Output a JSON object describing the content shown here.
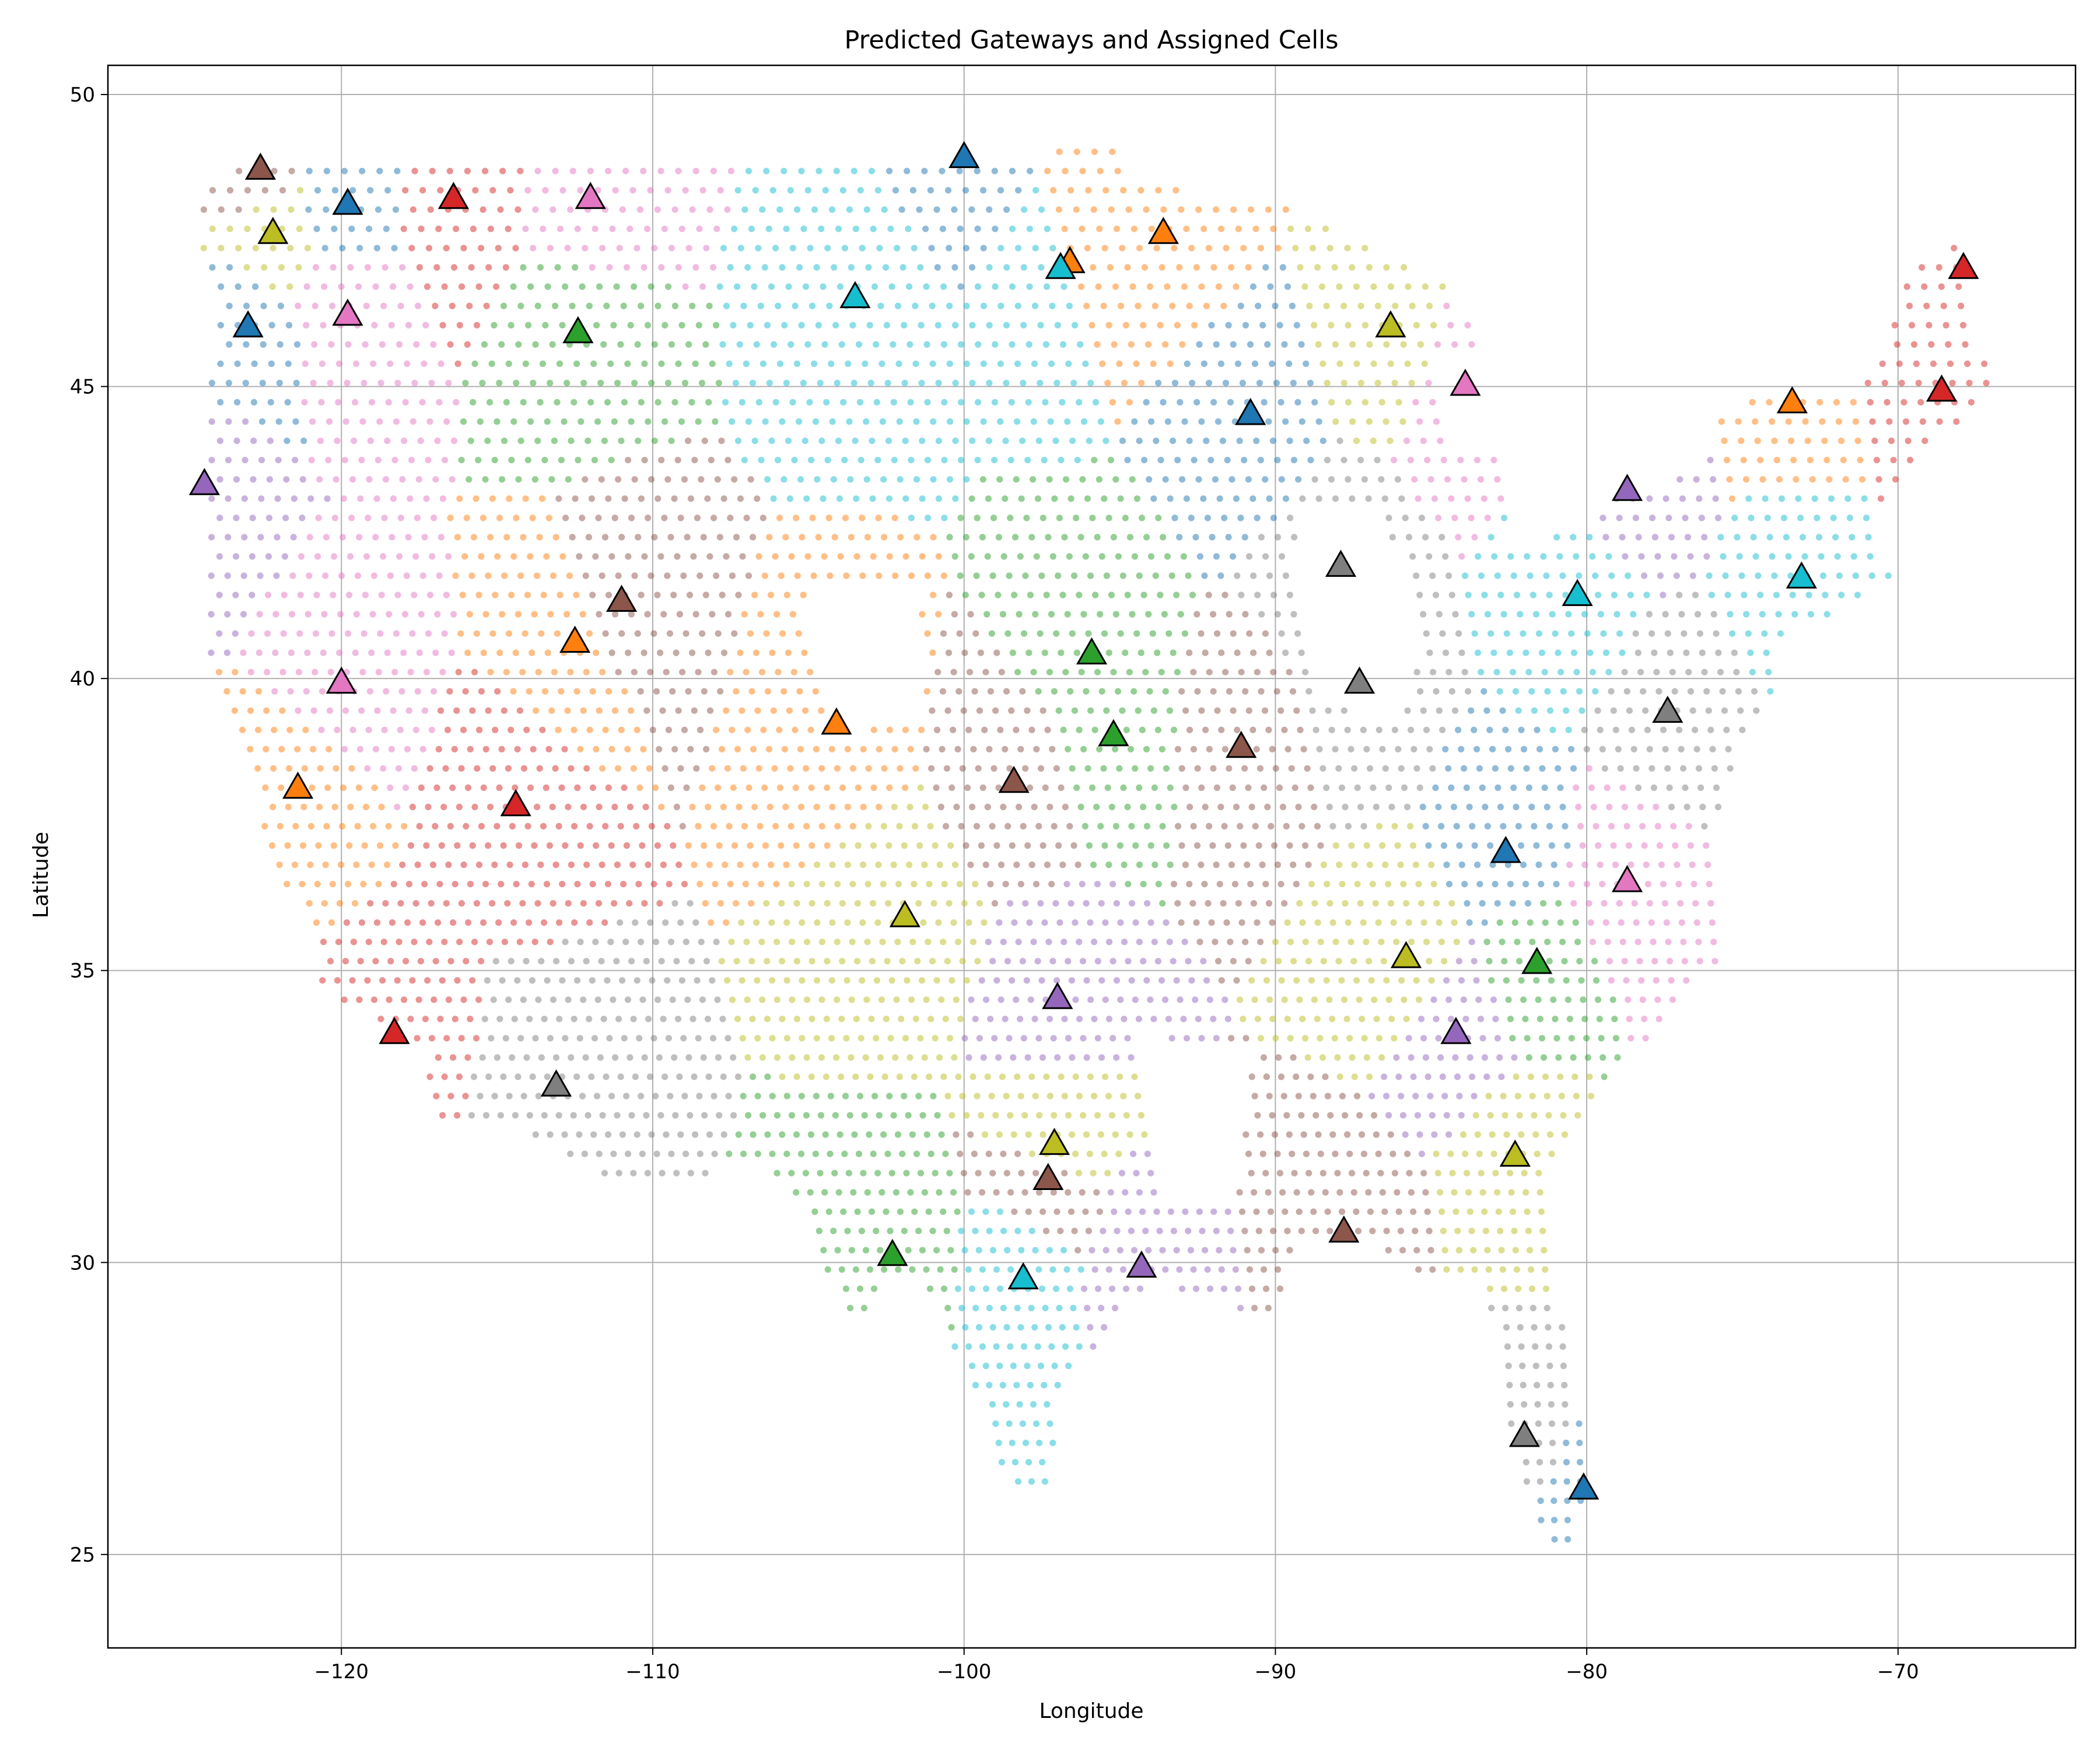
{
  "chart_data": {
    "type": "scatter",
    "title": "Predicted Gateways and Assigned Cells",
    "xlabel": "Longitude",
    "ylabel": "Latitude",
    "xlim": [
      -127.5,
      -64.3
    ],
    "ylim": [
      23.4,
      50.5
    ],
    "xticks": [
      -120,
      -110,
      -100,
      -90,
      -80,
      -70
    ],
    "yticks": [
      25,
      30,
      35,
      40,
      45,
      50
    ],
    "grid": true,
    "palette": {
      "blue": "#1f77b4",
      "orange": "#ff7f0e",
      "green": "#2ca02c",
      "red": "#d62728",
      "purple": "#9467bd",
      "brown": "#8c564b",
      "pink": "#e377c2",
      "gray": "#7f7f7f",
      "olive": "#bcbd22",
      "cyan": "#17becf"
    },
    "gateways": [
      {
        "lon": -122.6,
        "lat": 48.7,
        "color": "brown"
      },
      {
        "lon": -119.8,
        "lat": 48.1,
        "color": "blue"
      },
      {
        "lon": -116.4,
        "lat": 48.2,
        "color": "red"
      },
      {
        "lon": -112.0,
        "lat": 48.2,
        "color": "pink"
      },
      {
        "lon": -100.0,
        "lat": 48.9,
        "color": "blue"
      },
      {
        "lon": -122.2,
        "lat": 47.6,
        "color": "olive"
      },
      {
        "lon": -93.6,
        "lat": 47.6,
        "color": "orange"
      },
      {
        "lon": -96.6,
        "lat": 47.1,
        "color": "orange"
      },
      {
        "lon": -96.9,
        "lat": 47.0,
        "color": "cyan"
      },
      {
        "lon": -67.9,
        "lat": 47.0,
        "color": "red"
      },
      {
        "lon": -103.5,
        "lat": 46.5,
        "color": "cyan"
      },
      {
        "lon": -123.0,
        "lat": 46.0,
        "color": "blue"
      },
      {
        "lon": -119.8,
        "lat": 46.2,
        "color": "pink"
      },
      {
        "lon": -112.4,
        "lat": 45.9,
        "color": "green"
      },
      {
        "lon": -86.3,
        "lat": 46.0,
        "color": "olive"
      },
      {
        "lon": -83.9,
        "lat": 45.0,
        "color": "pink"
      },
      {
        "lon": -68.6,
        "lat": 44.9,
        "color": "red"
      },
      {
        "lon": -73.4,
        "lat": 44.7,
        "color": "orange"
      },
      {
        "lon": -90.8,
        "lat": 44.5,
        "color": "blue"
      },
      {
        "lon": -124.4,
        "lat": 43.3,
        "color": "purple"
      },
      {
        "lon": -78.7,
        "lat": 43.2,
        "color": "purple"
      },
      {
        "lon": -87.9,
        "lat": 41.9,
        "color": "gray"
      },
      {
        "lon": -73.1,
        "lat": 41.7,
        "color": "cyan"
      },
      {
        "lon": -80.3,
        "lat": 41.4,
        "color": "cyan"
      },
      {
        "lon": -111.0,
        "lat": 41.3,
        "color": "brown"
      },
      {
        "lon": -112.5,
        "lat": 40.6,
        "color": "orange"
      },
      {
        "lon": -95.9,
        "lat": 40.4,
        "color": "green"
      },
      {
        "lon": -120.0,
        "lat": 39.9,
        "color": "pink"
      },
      {
        "lon": -87.3,
        "lat": 39.9,
        "color": "gray"
      },
      {
        "lon": -77.4,
        "lat": 39.4,
        "color": "gray"
      },
      {
        "lon": -104.1,
        "lat": 39.2,
        "color": "orange"
      },
      {
        "lon": -95.2,
        "lat": 39.0,
        "color": "green"
      },
      {
        "lon": -91.1,
        "lat": 38.8,
        "color": "brown"
      },
      {
        "lon": -98.4,
        "lat": 38.2,
        "color": "brown"
      },
      {
        "lon": -121.4,
        "lat": 38.1,
        "color": "orange"
      },
      {
        "lon": -114.4,
        "lat": 37.8,
        "color": "red"
      },
      {
        "lon": -82.6,
        "lat": 37.0,
        "color": "blue"
      },
      {
        "lon": -78.7,
        "lat": 36.5,
        "color": "pink"
      },
      {
        "lon": -101.9,
        "lat": 35.9,
        "color": "olive"
      },
      {
        "lon": -85.8,
        "lat": 35.2,
        "color": "olive"
      },
      {
        "lon": -81.6,
        "lat": 35.1,
        "color": "green"
      },
      {
        "lon": -97.0,
        "lat": 34.5,
        "color": "purple"
      },
      {
        "lon": -84.2,
        "lat": 33.9,
        "color": "purple"
      },
      {
        "lon": -118.3,
        "lat": 33.9,
        "color": "red"
      },
      {
        "lon": -113.1,
        "lat": 33.0,
        "color": "gray"
      },
      {
        "lon": -97.1,
        "lat": 32.0,
        "color": "olive"
      },
      {
        "lon": -82.3,
        "lat": 31.8,
        "color": "olive"
      },
      {
        "lon": -97.3,
        "lat": 31.4,
        "color": "brown"
      },
      {
        "lon": -87.8,
        "lat": 30.5,
        "color": "brown"
      },
      {
        "lon": -102.3,
        "lat": 30.1,
        "color": "green"
      },
      {
        "lon": -94.3,
        "lat": 29.9,
        "color": "purple"
      },
      {
        "lon": -98.1,
        "lat": 29.7,
        "color": "cyan"
      },
      {
        "lon": -82.0,
        "lat": 27.0,
        "color": "gray"
      },
      {
        "lon": -80.1,
        "lat": 26.1,
        "color": "blue"
      }
    ]
  }
}
